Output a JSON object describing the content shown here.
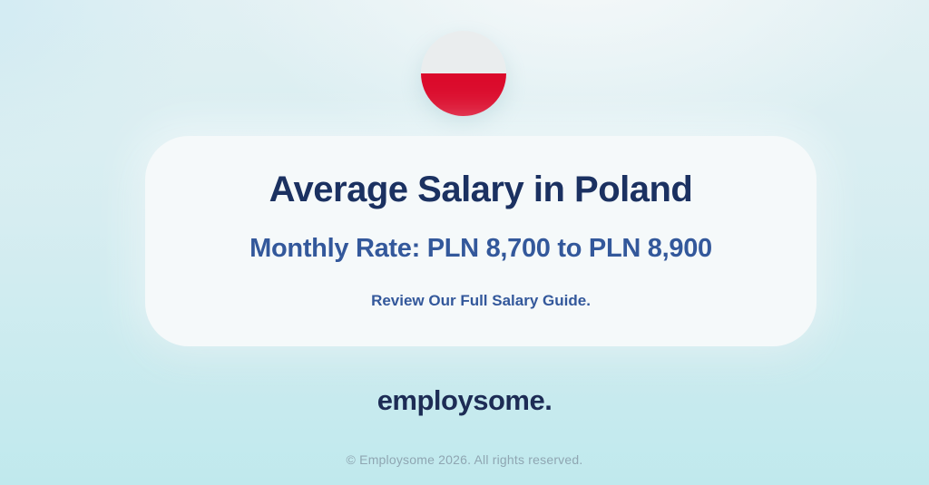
{
  "flag": {
    "country": "Poland",
    "stripe_top": "white",
    "stripe_bottom": "red"
  },
  "card": {
    "title": "Average Salary in Poland",
    "subtitle": "Monthly Rate: PLN 8,700 to PLN 8,900",
    "cta": "Review Our Full Salary Guide."
  },
  "branding": {
    "logo_text": "employsome."
  },
  "footer": {
    "copyright": "© Employsome 2026. All rights reserved."
  },
  "colors": {
    "title_navy": "#1B3161",
    "subtitle_blue": "#33589B",
    "cta_blue": "#33589B",
    "logo_navy": "#1D2C55",
    "footer_gray": "#8FA6B2",
    "card_background": "#F5F9FA",
    "flag_white": "#EAEDEE",
    "flag_red": "#DB0A2B",
    "background_top": "#F0F6F8",
    "background_bottom": "#C0E9ED"
  }
}
